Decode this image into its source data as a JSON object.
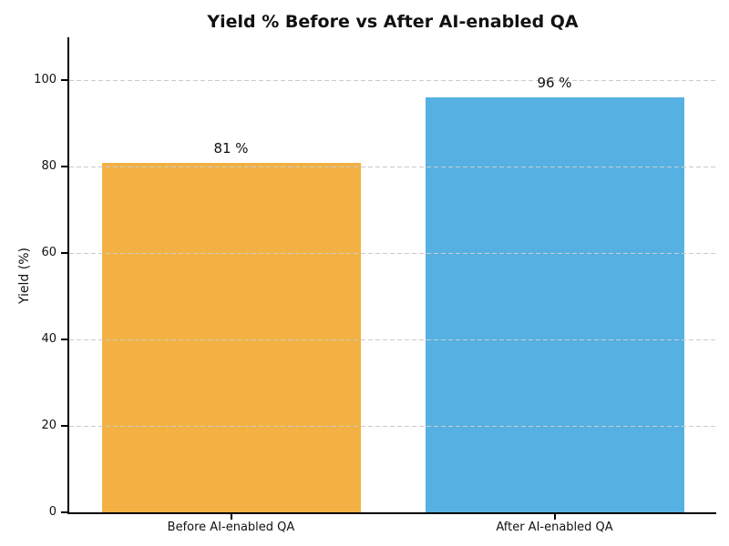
{
  "figure": {
    "background": "#ffffff",
    "text_color": "#111111",
    "grid_color": "#cbcbcb",
    "spine_color": "#000000"
  },
  "chart_data": {
    "type": "bar",
    "title": "Yield % Before vs After AI-enabled QA",
    "categories": [
      "Before AI-enabled QA",
      "After AI-enabled QA"
    ],
    "values": [
      81,
      96
    ],
    "bar_labels": [
      "81 %",
      "96 %"
    ],
    "bar_colors": [
      "#f2b142",
      "#56b1e2"
    ],
    "xlabel": "",
    "ylabel": "Yield (%)",
    "ylim": [
      0,
      110
    ],
    "yticks": [
      0,
      20,
      40,
      60,
      80,
      100
    ],
    "grid": "horizontal dashed, drawn above bars",
    "legend": "none"
  }
}
